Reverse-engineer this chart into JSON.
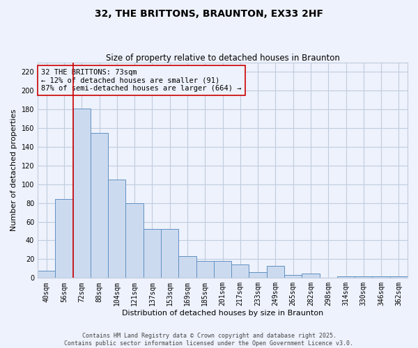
{
  "title": "32, THE BRITTONS, BRAUNTON, EX33 2HF",
  "subtitle": "Size of property relative to detached houses in Braunton",
  "xlabel": "Distribution of detached houses by size in Braunton",
  "ylabel": "Number of detached properties",
  "footer_line1": "Contains HM Land Registry data © Crown copyright and database right 2025.",
  "footer_line2": "Contains public sector information licensed under the Open Government Licence v3.0.",
  "annotation_text": "32 THE BRITTONS: 73sqm\n← 12% of detached houses are smaller (91)\n87% of semi-detached houses are larger (664) →",
  "bar_color": "#ccdaf0",
  "bar_edge_color": "#6090c0",
  "grid_color": "#c0ccdd",
  "background_color": "#eef2fc",
  "marker_line_color": "#cc0000",
  "annotation_box_edge_color": "#cc0000",
  "categories": [
    "40sqm",
    "56sqm",
    "72sqm",
    "88sqm",
    "104sqm",
    "121sqm",
    "137sqm",
    "153sqm",
    "169sqm",
    "185sqm",
    "201sqm",
    "217sqm",
    "233sqm",
    "249sqm",
    "265sqm",
    "282sqm",
    "298sqm",
    "314sqm",
    "330sqm",
    "346sqm",
    "362sqm"
  ],
  "values": [
    8,
    84,
    181,
    155,
    105,
    80,
    52,
    52,
    23,
    18,
    18,
    14,
    6,
    13,
    3,
    5,
    0,
    2,
    2,
    2,
    2
  ],
  "ylim": [
    0,
    230
  ],
  "yticks": [
    0,
    20,
    40,
    60,
    80,
    100,
    120,
    140,
    160,
    180,
    200,
    220
  ],
  "red_line_x": 1.5,
  "title_fontsize": 10,
  "subtitle_fontsize": 8.5,
  "tick_fontsize": 7,
  "ylabel_fontsize": 8,
  "xlabel_fontsize": 8,
  "annotation_fontsize": 7.5
}
